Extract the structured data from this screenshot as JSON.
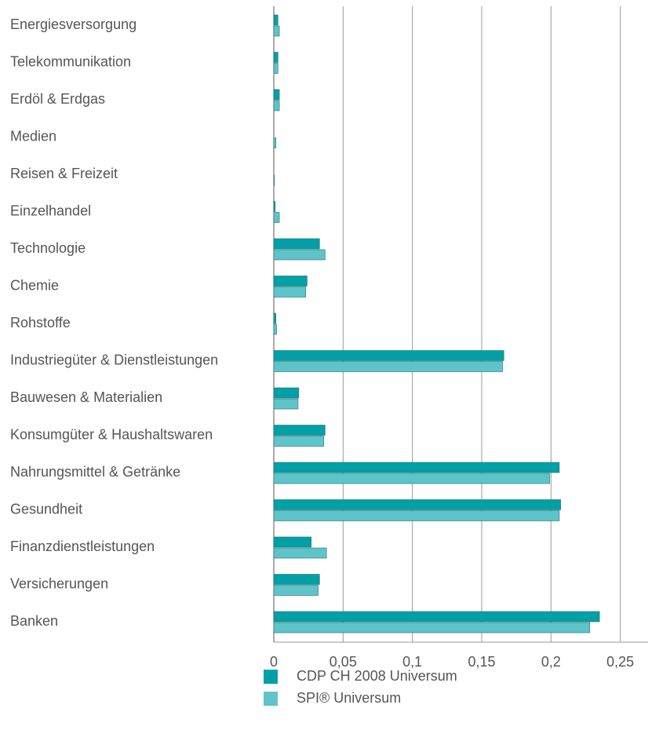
{
  "chart_data": {
    "type": "barh",
    "categories": [
      "Energiesversorgung",
      "Telekommunikation",
      "Erdöl & Erdgas",
      "Medien",
      "Reisen & Freizeit",
      "Einzelhandel",
      "Technologie",
      "Chemie",
      "Rohstoffe",
      "Industriegüter & Dienstleistungen",
      "Bauwesen & Materialien",
      "Konsumgüter & Haushaltswaren",
      "Nahrungsmittel & Getränke",
      "Gesundheit",
      "Finanzdienstleistungen",
      "Versicherungen",
      "Banken"
    ],
    "series": [
      {
        "name": "CDP CH 2008 Universum",
        "color": "#00a0a6",
        "values": [
          0.003,
          0.003,
          0.004,
          0,
          0,
          0.001,
          0.033,
          0.024,
          0.0015,
          0.166,
          0.018,
          0.037,
          0.206,
          0.207,
          0.027,
          0.033,
          0.235
        ]
      },
      {
        "name": "SPI® Universum",
        "color": "#5ec4c9",
        "values": [
          0.004,
          0.003,
          0.004,
          0.0015,
          0.0005,
          0.004,
          0.037,
          0.023,
          0.002,
          0.165,
          0.0175,
          0.036,
          0.199,
          0.206,
          0.038,
          0.032,
          0.228
        ]
      }
    ],
    "xlim": [
      0,
      0.27
    ],
    "xticks": [
      0,
      {
        "value": 0.05,
        "label": "0,05"
      },
      {
        "value": 0.1,
        "label": "0,1"
      },
      {
        "value": 0.15,
        "label": "0,15"
      },
      {
        "value": 0.2,
        "label": "0,2"
      },
      {
        "value": 0.25,
        "label": "0,25"
      }
    ],
    "grid": true,
    "legend": "bottom-left"
  }
}
